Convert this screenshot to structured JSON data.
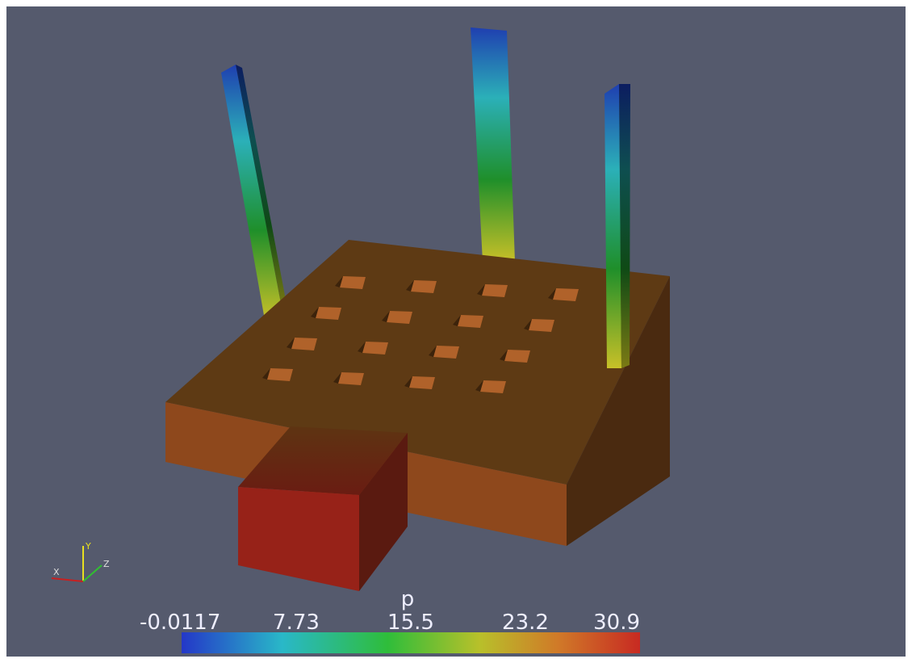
{
  "colorbar": {
    "title": "p",
    "labels": [
      "-0.0117",
      "7.73",
      "15.5",
      "23.2",
      "30.9"
    ]
  },
  "axes_triad": {
    "x": "X",
    "y": "Y",
    "z": "Z"
  }
}
